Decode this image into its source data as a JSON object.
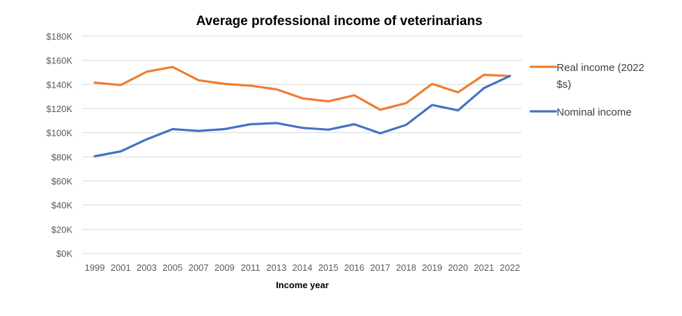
{
  "chart_data": {
    "type": "line",
    "title": "Average professional income of veterinarians",
    "xlabel": "Income year",
    "ylabel": "",
    "ylim": [
      0,
      180000
    ],
    "y_ticks": [
      {
        "value": 0,
        "label": "$0K"
      },
      {
        "value": 20000,
        "label": "$20K"
      },
      {
        "value": 40000,
        "label": "$40K"
      },
      {
        "value": 60000,
        "label": "$60K"
      },
      {
        "value": 80000,
        "label": "$80K"
      },
      {
        "value": 100000,
        "label": "$100K"
      },
      {
        "value": 120000,
        "label": "$120K"
      },
      {
        "value": 140000,
        "label": "$140K"
      },
      {
        "value": 160000,
        "label": "$160K"
      },
      {
        "value": 180000,
        "label": "$180K"
      }
    ],
    "grid": true,
    "legend_position": "right",
    "categories": [
      "1999",
      "2001",
      "2003",
      "2005",
      "2007",
      "2009",
      "2011",
      "2013",
      "2014",
      "2015",
      "2016",
      "2017",
      "2018",
      "2019",
      "2020",
      "2021",
      "2022"
    ],
    "series": [
      {
        "name": "Real income (2022 $s)",
        "legend_lines": [
          "Real income (2022",
          "$s)"
        ],
        "color": "#ED7D31",
        "values": [
          141500,
          139500,
          150500,
          154500,
          143500,
          140500,
          139000,
          136000,
          128500,
          126000,
          131000,
          119000,
          124500,
          140500,
          133500,
          148000,
          147000
        ]
      },
      {
        "name": "Nominal income",
        "legend_lines": [
          "Nominal income"
        ],
        "color": "#4472C4",
        "values": [
          80500,
          84500,
          94500,
          103000,
          101500,
          103000,
          107000,
          108000,
          104000,
          102500,
          107000,
          99500,
          106500,
          123000,
          118500,
          137000,
          147000
        ]
      }
    ]
  }
}
